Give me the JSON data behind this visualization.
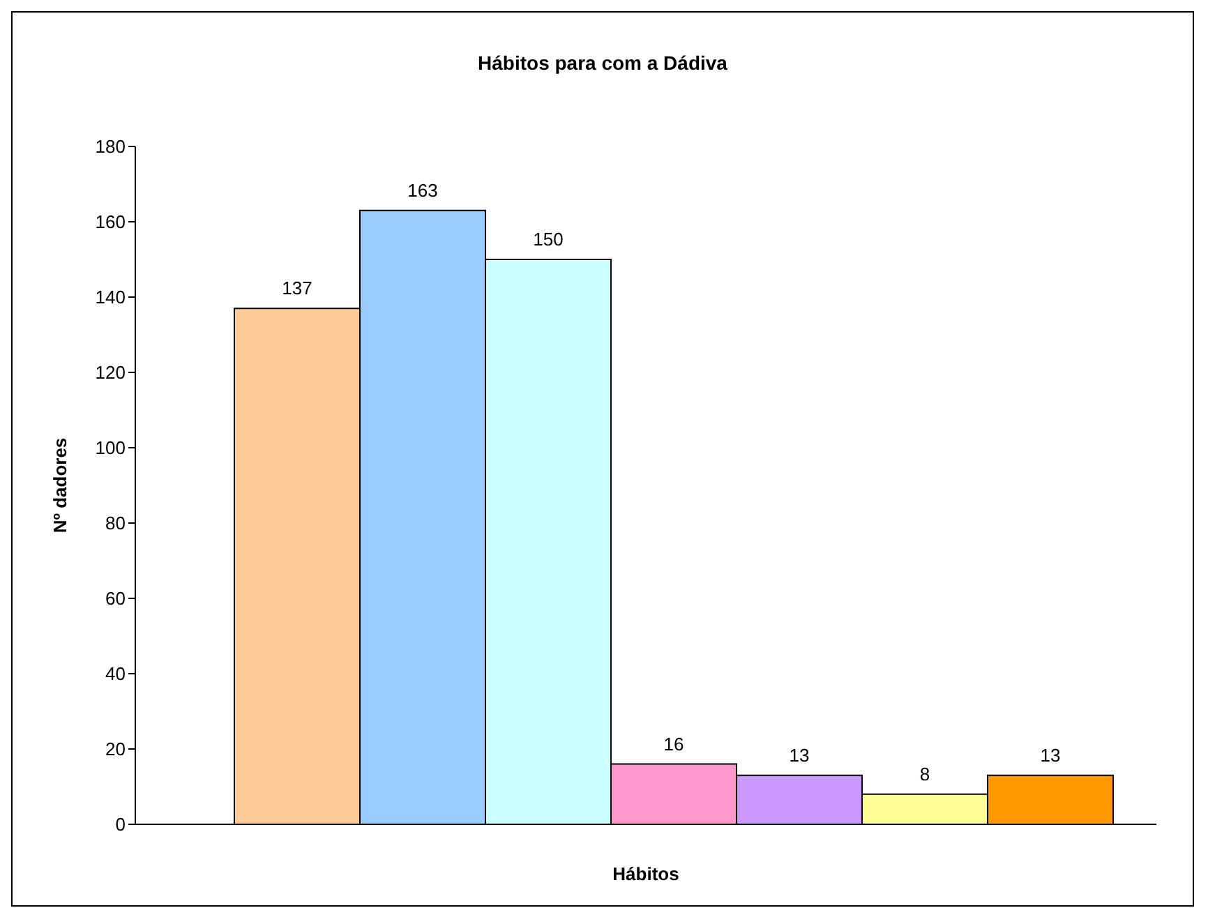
{
  "chart_data": {
    "type": "bar",
    "title": "Hábitos para com a Dádiva",
    "xlabel": "Hábitos",
    "ylabel": "Nº dadores",
    "categories": [
      null,
      null,
      null,
      null,
      null,
      null,
      null
    ],
    "values": [
      137,
      163,
      150,
      16,
      13,
      8,
      13
    ],
    "colors": [
      "#ffcc99",
      "#99ccff",
      "#ccffff",
      "#ff99cc",
      "#cc99ff",
      "#ffff99",
      "#ff9900"
    ],
    "ylim": [
      0,
      180
    ],
    "yticks": [
      0,
      20,
      40,
      60,
      80,
      100,
      120,
      140,
      160,
      180
    ],
    "data_labels": true,
    "grid": false,
    "legend": false
  }
}
